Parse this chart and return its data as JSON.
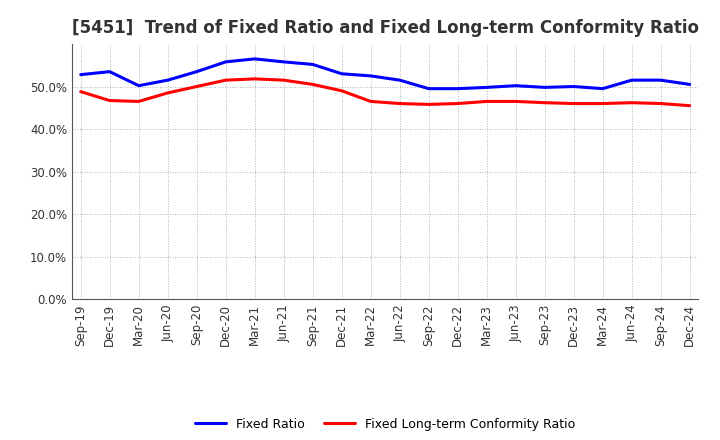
{
  "title": "[5451]  Trend of Fixed Ratio and Fixed Long-term Conformity Ratio",
  "x_labels": [
    "Sep-19",
    "Dec-19",
    "Mar-20",
    "Jun-20",
    "Sep-20",
    "Dec-20",
    "Mar-21",
    "Jun-21",
    "Sep-21",
    "Dec-21",
    "Mar-22",
    "Jun-22",
    "Sep-22",
    "Dec-22",
    "Mar-23",
    "Jun-23",
    "Sep-23",
    "Dec-23",
    "Mar-24",
    "Jun-24",
    "Sep-24",
    "Dec-24"
  ],
  "fixed_ratio": [
    52.8,
    53.5,
    50.2,
    51.5,
    53.5,
    55.8,
    56.5,
    55.8,
    55.2,
    53.0,
    52.5,
    51.5,
    49.5,
    49.5,
    49.8,
    50.2,
    49.8,
    50.0,
    49.5,
    51.5,
    51.5,
    50.5
  ],
  "fixed_lt_ratio": [
    48.8,
    46.7,
    46.5,
    48.5,
    50.0,
    51.5,
    51.8,
    51.5,
    50.5,
    49.0,
    46.5,
    46.0,
    45.8,
    46.0,
    46.5,
    46.5,
    46.2,
    46.0,
    46.0,
    46.2,
    46.0,
    45.5
  ],
  "ylim": [
    0,
    60
  ],
  "yticks": [
    0,
    10,
    20,
    30,
    40,
    50
  ],
  "ytick_labels": [
    "0.0%",
    "10.0%",
    "20.0%",
    "30.0%",
    "40.0%",
    "50.0%"
  ],
  "line_color_blue": "#0000FF",
  "line_color_red": "#FF0000",
  "legend_fixed_ratio": "Fixed Ratio",
  "legend_fixed_lt_ratio": "Fixed Long-term Conformity Ratio",
  "bg_color": "#FFFFFF",
  "grid_color": "#999999",
  "line_width": 2.2,
  "title_fontsize": 12,
  "tick_fontsize": 8.5,
  "legend_fontsize": 9
}
